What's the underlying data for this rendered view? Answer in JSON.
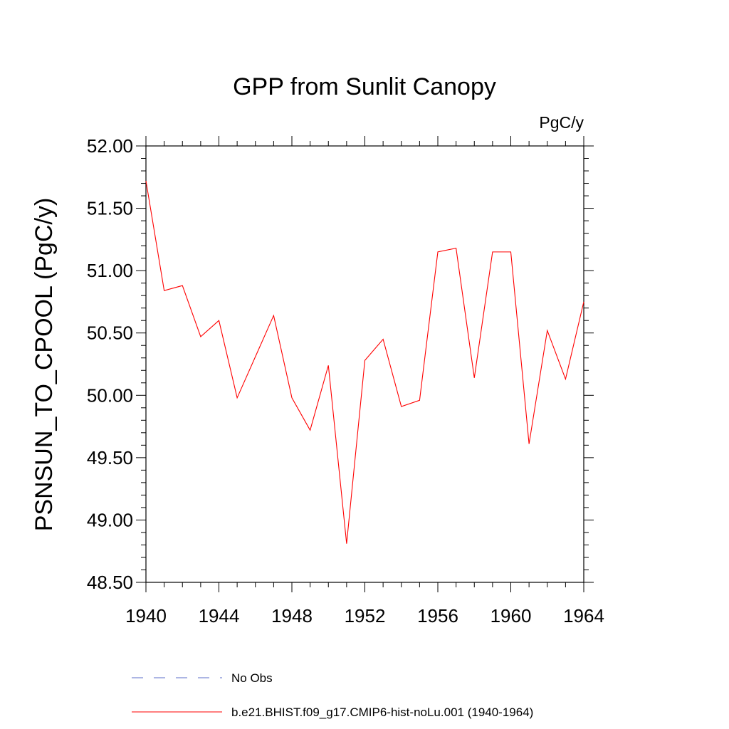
{
  "chart_data": {
    "type": "line",
    "title": "GPP from Sunlit Canopy",
    "units_label": "PgC/y",
    "ylabel": "PSNSUN_TO_CPOOL  (PgC/y)",
    "xlabel": "",
    "xlim": [
      1940,
      1964
    ],
    "ylim": [
      48.5,
      52.0
    ],
    "x_ticks": [
      "1940",
      "1944",
      "1948",
      "1952",
      "1956",
      "1960",
      "1964"
    ],
    "y_ticks": [
      "48.50",
      "49.00",
      "49.50",
      "50.00",
      "50.50",
      "51.00",
      "51.50",
      "52.00"
    ],
    "grid": false,
    "legend_position": "bottom",
    "series": [
      {
        "name": "b.e21.BHIST.f09_g17.CMIP6-hist-noLu.001 (1940-1964)",
        "color": "#ff0000",
        "style": "solid",
        "x": [
          1940,
          1941,
          1942,
          1943,
          1944,
          1945,
          1946,
          1947,
          1948,
          1949,
          1950,
          1951,
          1952,
          1953,
          1954,
          1955,
          1956,
          1957,
          1958,
          1959,
          1960,
          1961,
          1962,
          1963,
          1964
        ],
        "values": [
          51.72,
          50.84,
          50.88,
          50.47,
          50.6,
          49.98,
          50.31,
          50.64,
          49.98,
          49.72,
          50.24,
          48.81,
          50.28,
          50.45,
          49.91,
          49.96,
          51.15,
          51.18,
          50.14,
          51.15,
          51.15,
          49.61,
          50.52,
          50.13,
          50.75
        ]
      }
    ],
    "legend": [
      {
        "label": "No Obs",
        "color": "#5b6ec8",
        "style": "dashed"
      },
      {
        "label": "b.e21.BHIST.f09_g17.CMIP6-hist-noLu.001 (1940-1964)",
        "color": "#ff0000",
        "style": "solid"
      }
    ]
  }
}
